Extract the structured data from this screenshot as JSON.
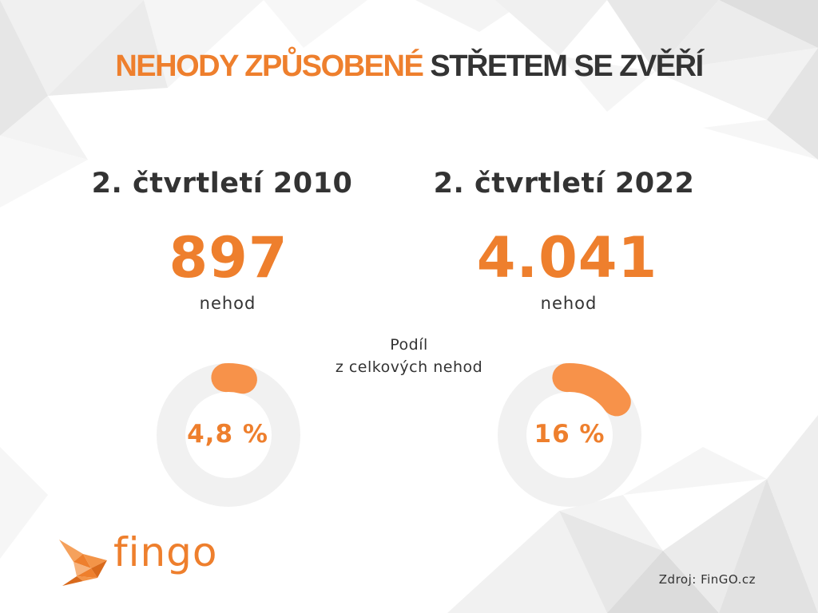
{
  "title": {
    "highlight": "NEHODY ZPŮSOBENÉ",
    "rest": "STŘETEM SE ZVĚŘÍ"
  },
  "share_label": {
    "line1": "Podíl",
    "line2": "z celkových nehod"
  },
  "source": "Zdroj: FinGO.cz",
  "logo": {
    "text": "fingo",
    "icon": "fish-icon"
  },
  "colors": {
    "accent": "#ee7f2d",
    "donut_track": "#f1f1f1",
    "donut_fill": "#f7924a",
    "text": "#333333"
  },
  "chart_data": {
    "type": "pie",
    "subtype": "donut",
    "categories": [
      "2. čtvrtletí 2010",
      "2. čtvrtletí 2022"
    ],
    "series": [
      {
        "name": "nehod",
        "values": [
          897,
          4041
        ]
      },
      {
        "name": "Podíl z celkových nehod",
        "values": [
          4.8,
          16
        ]
      }
    ],
    "display": {
      "counts": [
        "897",
        "4.041"
      ],
      "unit": "nehod",
      "percent_labels": [
        "4,8 %",
        "16 %"
      ]
    }
  }
}
